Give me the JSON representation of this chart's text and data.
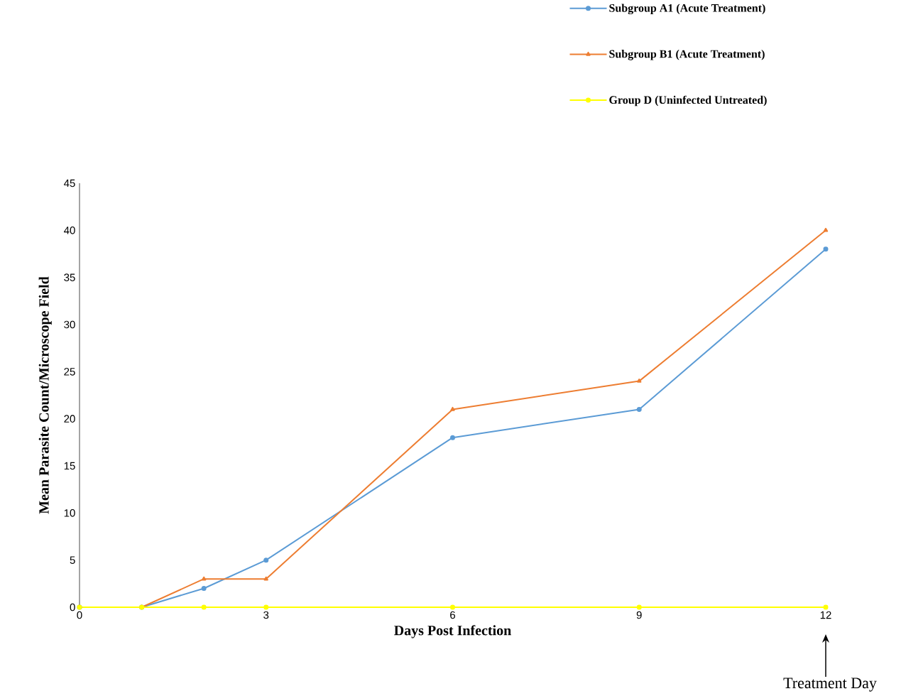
{
  "chart_data": {
    "type": "line",
    "xlabel": "Days Post Infection",
    "ylabel": "Mean Parasite Count/Microscope Field",
    "xlim": [
      0,
      12
    ],
    "xticks": [
      0,
      3,
      6,
      9,
      12
    ],
    "ylim": [
      0,
      45
    ],
    "yticks": [
      0,
      5,
      10,
      15,
      20,
      25,
      30,
      35,
      40,
      45
    ],
    "x": [
      0,
      1,
      2,
      3,
      6,
      9,
      12
    ],
    "legend": "top right",
    "grid": false,
    "line_style": "solid",
    "series": [
      {
        "name": "Subgroup A1 (Acute Treatment)",
        "color": "#5b9bd5",
        "marker": "circle",
        "values": [
          0,
          0,
          2,
          5,
          18,
          21,
          38
        ]
      },
      {
        "name": "Subgroup B1 (Acute Treatment)",
        "color": "#ed7d31",
        "marker": "triangle",
        "values": [
          0,
          0,
          3,
          3,
          21,
          24,
          40
        ]
      },
      {
        "name": "Group D (Uninfected Untreated)",
        "color": "#ffff00",
        "marker": "circle",
        "values": [
          0,
          0,
          0,
          0,
          0,
          0,
          0
        ]
      }
    ],
    "annotations": [
      "Treatment Day"
    ]
  }
}
